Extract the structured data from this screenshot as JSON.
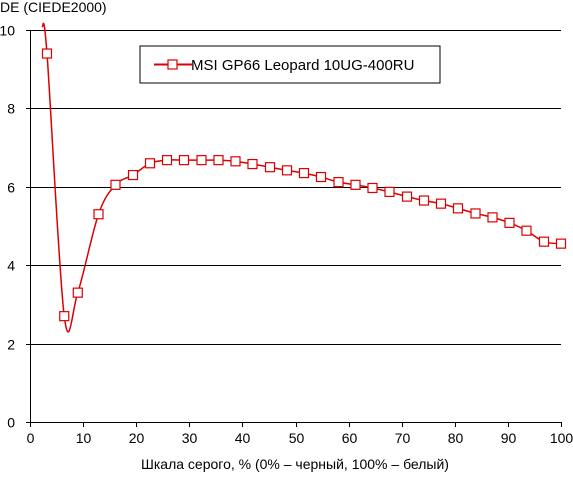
{
  "chart_data": {
    "type": "line",
    "title": "",
    "ylabel": "DE (CIEDE2000)",
    "xlabel": "Шкала серого, % (0% – черный, 100% – белый)",
    "xlim": [
      0,
      100
    ],
    "ylim": [
      0,
      10
    ],
    "x_ticks": [
      0,
      10,
      20,
      30,
      40,
      50,
      60,
      70,
      80,
      90,
      100
    ],
    "y_ticks": [
      0,
      2,
      4,
      6,
      8,
      10
    ],
    "x_tick_labels": [
      "0",
      "10",
      "20",
      "30",
      "40",
      "50",
      "60",
      "70",
      "80",
      "90",
      "100"
    ],
    "y_tick_labels": [
      "0",
      "2",
      "4",
      "6",
      "8",
      "10"
    ],
    "grid": "horizontal",
    "legend_position": "top-center",
    "series": [
      {
        "name": "MSI GP66 Leopard 10UG-400RU",
        "color": "#dd0000",
        "marker": "square-open",
        "x": [
          2.3,
          3.2,
          6.45,
          9.0,
          12.9,
          16.1,
          19.4,
          22.6,
          25.8,
          29.0,
          32.3,
          35.5,
          38.7,
          41.9,
          45.2,
          48.4,
          51.6,
          54.8,
          58.1,
          61.3,
          64.5,
          67.7,
          71.0,
          74.2,
          77.4,
          80.6,
          83.9,
          87.1,
          90.3,
          93.5,
          96.8,
          100.0
        ],
        "values": [
          10.1,
          9.4,
          2.7,
          3.3,
          5.3,
          6.05,
          6.3,
          6.6,
          6.68,
          6.68,
          6.68,
          6.68,
          6.65,
          6.58,
          6.5,
          6.42,
          6.35,
          6.25,
          6.12,
          6.05,
          5.97,
          5.87,
          5.75,
          5.65,
          5.57,
          5.45,
          5.32,
          5.22,
          5.08,
          4.88,
          4.6,
          4.55
        ]
      }
    ]
  }
}
